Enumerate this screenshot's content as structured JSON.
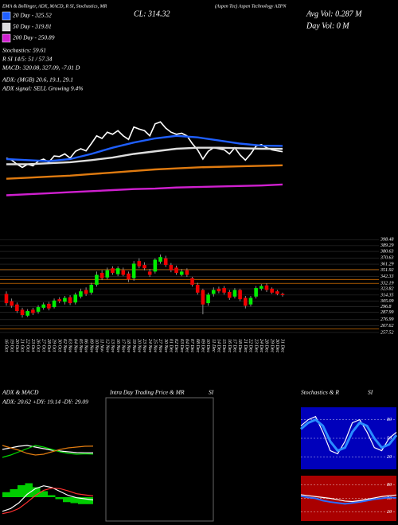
{
  "header": {
    "studies": "EMA & Bollinger, ADX, MACD, R SI, Stochastics, MR",
    "close": "CL: 314.32",
    "company": "(Aspen Tec) Aspen Technology AZPN",
    "avg_vol": "Avg Vol: 0.287 M",
    "day_vol": "Day Vol: 0 M",
    "stochastics": "Stochastics: 59.61",
    "rsi": "R SI 14/5: 51 / 57.34",
    "macd": "MACD: 320.08, 327.09, -7.01 D",
    "adx": "ADX: (MGB) 20.6, 19.1, 29.1",
    "adx_signal": "ADX signal: SELL Growing 9.4%"
  },
  "chart_data": [
    {
      "type": "candlestick",
      "categories": [
        "16 Oct",
        "19 Oct",
        "20 Oct",
        "21 Oct",
        "22 Oct",
        "23 Oct",
        "26 Oct",
        "27 Oct",
        "28 Oct",
        "29 Oct",
        "30 Oct",
        "02 Nov",
        "03 Nov",
        "04 Nov",
        "05 Nov",
        "06 Nov",
        "09 Nov",
        "10 Nov",
        "11 Nov",
        "12 Nov",
        "13 Nov",
        "16 Nov",
        "17 Nov",
        "18 Nov",
        "19 Nov",
        "20 Nov",
        "23 Nov",
        "24 Nov",
        "25 Nov",
        "27 Nov",
        "30 Nov",
        "01 Dec",
        "02 Dec",
        "03 Dec",
        "04 Dec",
        "07 Dec",
        "08 Dec",
        "09 Dec",
        "10 Dec",
        "11 Dec",
        "14 Dec",
        "15 Dec",
        "16 Dec",
        "17 Dec",
        "18 Dec",
        "21 Dec",
        "22 Dec",
        "23 Dec",
        "24 Dec",
        "28 Dec",
        "29 Dec",
        "30 Dec",
        "31 Dec"
      ],
      "open": [
        316,
        305,
        300,
        292,
        283,
        292,
        289,
        295,
        301,
        296,
        308,
        304,
        311,
        303,
        312,
        322,
        318,
        330,
        348,
        341,
        355,
        346,
        352,
        347,
        340,
        366,
        360,
        350,
        350,
        365,
        370,
        360,
        356,
        345,
        352,
        340,
        330,
        322,
        302,
        316,
        324,
        325,
        319,
        312,
        322,
        310,
        300,
        312,
        324,
        329,
        324,
        320,
        316
      ],
      "high": [
        320,
        309,
        303,
        295,
        293,
        295,
        299,
        303,
        304,
        309,
        311,
        313,
        314,
        318,
        324,
        326,
        333,
        350,
        352,
        356,
        358,
        358,
        356,
        350,
        366,
        370,
        364,
        354,
        370,
        376,
        374,
        363,
        359,
        354,
        355,
        342,
        333,
        324,
        318,
        326,
        327,
        328,
        322,
        325,
        324,
        313,
        313,
        328,
        331,
        332,
        326,
        322,
        318
      ],
      "low": [
        298,
        295,
        287,
        280,
        281,
        284,
        286,
        292,
        291,
        294,
        302,
        300,
        299,
        300,
        309,
        313,
        315,
        327,
        337,
        338,
        345,
        343,
        343,
        334,
        336,
        355,
        352,
        342,
        347,
        362,
        357,
        349,
        345,
        343,
        342,
        327,
        315,
        285,
        298,
        312,
        317,
        315,
        307,
        309,
        305,
        294,
        297,
        309,
        321,
        319,
        316,
        314,
        312
      ],
      "close": [
        302,
        298,
        290,
        284,
        290,
        287,
        296,
        300,
        294,
        306,
        305,
        310,
        302,
        315,
        320,
        316,
        330,
        345,
        340,
        352,
        348,
        355,
        345,
        338,
        362,
        358,
        355,
        345,
        368,
        372,
        360,
        352,
        348,
        350,
        345,
        330,
        318,
        300,
        315,
        322,
        320,
        318,
        310,
        322,
        308,
        298,
        310,
        325,
        328,
        322,
        318,
        316,
        314.32
      ],
      "ylim": [
        255,
        400
      ],
      "yticks": [
        398.48,
        389.29,
        380.63,
        370.63,
        361.29,
        351.92,
        342.33,
        332.19,
        323.82,
        314.35,
        305.09,
        296.8,
        287.99,
        276.99,
        267.62,
        257.52
      ],
      "grid": true,
      "grid_color": "#333333",
      "levels": [
        353,
        338,
        332,
        263
      ],
      "level_color": "#cc6a00",
      "up_color": "#00ee00",
      "down_color": "#ee0000",
      "price_line_color": "#ffffff",
      "ma_x": [
        0,
        4,
        8,
        12,
        16,
        20,
        24,
        28,
        32,
        36,
        40,
        44,
        48,
        52
      ],
      "ma_ylim": [
        200,
        400
      ],
      "ma_series": [
        {
          "name": "20 Day - 325.52",
          "color": "#1f5fff",
          "values": [
            300,
            298,
            296,
            300,
            310,
            322,
            332,
            340,
            345,
            342,
            336,
            330,
            326,
            325.52
          ]
        },
        {
          "name": "50 Day - 319.81",
          "color": "#dddddd",
          "values": [
            290,
            290,
            292,
            294,
            298,
            303,
            310,
            315,
            320,
            322,
            322,
            321,
            320,
            319.81
          ]
        },
        {
          "color": "#e07b10",
          "values": [
            262,
            264,
            266,
            268,
            271,
            274,
            277,
            280,
            282,
            284,
            285,
            286,
            287,
            288
          ]
        },
        {
          "name": "200 Day - 250.89",
          "color": "#d020d0",
          "values": [
            230,
            232,
            234,
            236,
            238,
            240,
            242,
            243,
            245,
            246,
            247,
            248,
            249,
            250.89
          ]
        }
      ]
    },
    {
      "type": "line",
      "title": "ADX & MACD",
      "subtitle": "ADX: 20.62 +DY: 19.14 -DY: 29.09",
      "ylim": [
        0,
        50
      ],
      "series": [
        {
          "color": "#ffffff",
          "values": [
            25,
            27,
            29,
            30,
            28,
            26,
            24,
            23,
            22,
            21,
            20.8,
            20.62
          ]
        },
        {
          "color": "#00dd00",
          "values": [
            15,
            18,
            22,
            26,
            30,
            28,
            25,
            22,
            20,
            19,
            19.5,
            19.14
          ]
        },
        {
          "color": "#e07b10",
          "values": [
            30,
            27,
            24,
            20,
            18,
            19,
            22,
            25,
            27,
            28,
            29,
            29.09
          ]
        }
      ]
    },
    {
      "type": "macd",
      "ylim": [
        290,
        360
      ],
      "hist_ylim": [
        -20,
        20
      ],
      "hist_color": "#00cc00",
      "hist": [
        5,
        8,
        12,
        14,
        10,
        6,
        2,
        -2,
        -5,
        -6,
        -7,
        -7.01
      ],
      "series": [
        {
          "color": "#ffffff",
          "values": [
            300,
            305,
            315,
            330,
            340,
            345,
            342,
            335,
            328,
            324,
            322,
            320.08
          ]
        },
        {
          "color": "#ff3030",
          "values": [
            296,
            299,
            305,
            316,
            328,
            337,
            341,
            340,
            336,
            331,
            329,
            327.09
          ]
        }
      ]
    },
    {
      "type": "empty",
      "title": "Intra Day Trading Price & MR",
      "subtitle": "SI"
    },
    {
      "type": "line",
      "title": "Stochastics & R",
      "ylim": [
        0,
        100
      ],
      "yticks": [
        80,
        50,
        20
      ],
      "background": "#0000bb",
      "series": [
        {
          "color": "#ffffff",
          "values": [
            70,
            80,
            85,
            60,
            30,
            25,
            45,
            75,
            80,
            60,
            35,
            30,
            50,
            59.61
          ]
        },
        {
          "color": "#2a8cff",
          "width": 3,
          "values": [
            65,
            75,
            80,
            70,
            45,
            30,
            35,
            60,
            75,
            70,
            50,
            35,
            40,
            55
          ]
        }
      ]
    },
    {
      "type": "line",
      "title": "SI",
      "ylim": [
        0,
        100
      ],
      "yticks": [
        80,
        50,
        20
      ],
      "background": "#aa0000",
      "series": [
        {
          "color": "#2a6cff",
          "width": 2,
          "values": [
            55,
            52,
            50,
            45,
            42,
            40,
            38,
            40,
            42,
            45,
            48,
            50,
            52,
            51
          ]
        },
        {
          "color": "#ffffff",
          "values": [
            58,
            56,
            54,
            52,
            50,
            47,
            44,
            43,
            45,
            48,
            51,
            54,
            56,
            57.34
          ]
        }
      ]
    }
  ]
}
